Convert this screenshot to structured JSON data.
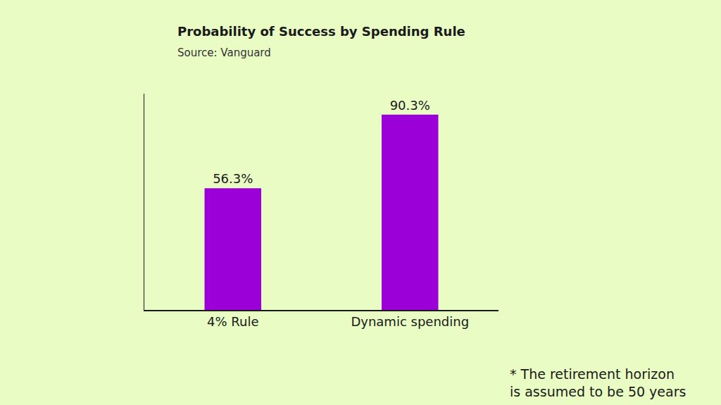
{
  "chart_data": {
    "type": "bar",
    "title": "Probability of Success by Spending Rule",
    "subtitle": "Source: Vanguard",
    "annotations": [
      "* The retirement horizon\nis assumed to be 50 years"
    ],
    "categories": [
      "4% Rule",
      "Dynamic spending"
    ],
    "values": [
      56.3,
      90.3
    ],
    "value_labels": [
      "56.3%",
      "90.3%"
    ],
    "color": "#9b00d9",
    "ylim": [
      0,
      100
    ],
    "grid": false,
    "data_labels": true,
    "tick_labels": "x"
  }
}
